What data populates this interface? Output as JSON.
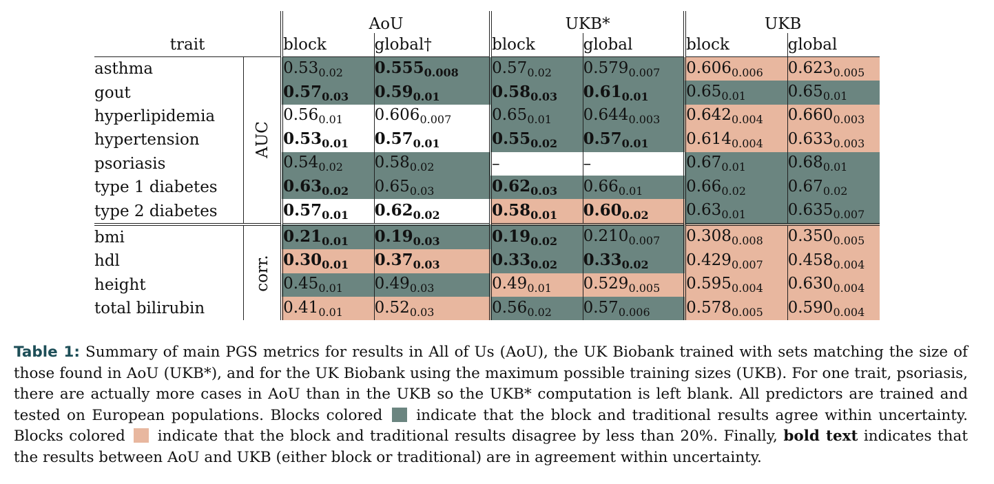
{
  "table": {
    "groups": [
      "AoU",
      "UKB*",
      "UKB"
    ],
    "trait_header": "trait",
    "subheaders": [
      "block",
      "global†",
      "block",
      "global",
      "block",
      "global"
    ],
    "sections": [
      {
        "metric": "AUC",
        "rows": [
          {
            "trait": "asthma",
            "cells": [
              {
                "main": "0.53",
                "sub": "0.02",
                "color": "green",
                "bold": false
              },
              {
                "main": "0.555",
                "sub": "0.008",
                "color": "green",
                "bold": true
              },
              {
                "main": "0.57",
                "sub": "0.02",
                "color": "green",
                "bold": false
              },
              {
                "main": "0.579",
                "sub": "0.007",
                "color": "green",
                "bold": false
              },
              {
                "main": "0.606",
                "sub": "0.006",
                "color": "salmon",
                "bold": false
              },
              {
                "main": "0.623",
                "sub": "0.005",
                "color": "salmon",
                "bold": false
              }
            ]
          },
          {
            "trait": "gout",
            "cells": [
              {
                "main": "0.57",
                "sub": "0.03",
                "color": "green",
                "bold": true
              },
              {
                "main": "0.59",
                "sub": "0.01",
                "color": "green",
                "bold": true
              },
              {
                "main": "0.58",
                "sub": "0.03",
                "color": "green",
                "bold": true
              },
              {
                "main": "0.61",
                "sub": "0.01",
                "color": "green",
                "bold": true
              },
              {
                "main": "0.65",
                "sub": "0.01",
                "color": "green",
                "bold": false
              },
              {
                "main": "0.65",
                "sub": "0.01",
                "color": "green",
                "bold": false
              }
            ]
          },
          {
            "trait": "hyperlipidemia",
            "cells": [
              {
                "main": "0.56",
                "sub": "0.01",
                "color": "white",
                "bold": false
              },
              {
                "main": "0.606",
                "sub": "0.007",
                "color": "white",
                "bold": false
              },
              {
                "main": "0.65",
                "sub": "0.01",
                "color": "green",
                "bold": false
              },
              {
                "main": "0.644",
                "sub": "0.003",
                "color": "green",
                "bold": false
              },
              {
                "main": "0.642",
                "sub": "0.004",
                "color": "salmon",
                "bold": false
              },
              {
                "main": "0.660",
                "sub": "0.003",
                "color": "salmon",
                "bold": false
              }
            ]
          },
          {
            "trait": "hypertension",
            "cells": [
              {
                "main": "0.53",
                "sub": "0.01",
                "color": "white",
                "bold": true
              },
              {
                "main": "0.57",
                "sub": "0.01",
                "color": "white",
                "bold": true
              },
              {
                "main": "0.55",
                "sub": "0.02",
                "color": "green",
                "bold": true
              },
              {
                "main": "0.57",
                "sub": "0.01",
                "color": "green",
                "bold": true
              },
              {
                "main": "0.614",
                "sub": "0.004",
                "color": "salmon",
                "bold": false
              },
              {
                "main": "0.633",
                "sub": "0.003",
                "color": "salmon",
                "bold": false
              }
            ]
          },
          {
            "trait": "psoriasis",
            "cells": [
              {
                "main": "0.54",
                "sub": "0.02",
                "color": "green",
                "bold": false
              },
              {
                "main": "0.58",
                "sub": "0.02",
                "color": "green",
                "bold": false
              },
              {
                "main": "–",
                "sub": "",
                "color": "white",
                "bold": false
              },
              {
                "main": "–",
                "sub": "",
                "color": "white",
                "bold": false
              },
              {
                "main": "0.67",
                "sub": "0.01",
                "color": "green",
                "bold": false
              },
              {
                "main": "0.68",
                "sub": "0.01",
                "color": "green",
                "bold": false
              }
            ]
          },
          {
            "trait": "type 1 diabetes",
            "cells": [
              {
                "main": "0.63",
                "sub": "0.02",
                "color": "green",
                "bold": true
              },
              {
                "main": "0.65",
                "sub": "0.03",
                "color": "green",
                "bold": false
              },
              {
                "main": "0.62",
                "sub": "0.03",
                "color": "green",
                "bold": true
              },
              {
                "main": "0.66",
                "sub": "0.01",
                "color": "green",
                "bold": false
              },
              {
                "main": "0.66",
                "sub": "0.02",
                "color": "green",
                "bold": false
              },
              {
                "main": "0.67",
                "sub": "0.02",
                "color": "green",
                "bold": false
              }
            ]
          },
          {
            "trait": "type 2 diabetes",
            "cells": [
              {
                "main": "0.57",
                "sub": "0.01",
                "color": "white",
                "bold": true
              },
              {
                "main": "0.62",
                "sub": "0.02",
                "color": "white",
                "bold": true
              },
              {
                "main": "0.58",
                "sub": "0.01",
                "color": "salmon",
                "bold": true
              },
              {
                "main": "0.60",
                "sub": "0.02",
                "color": "salmon",
                "bold": true
              },
              {
                "main": "0.63",
                "sub": "0.01",
                "color": "green",
                "bold": false
              },
              {
                "main": "0.635",
                "sub": "0.007",
                "color": "green",
                "bold": false
              }
            ]
          }
        ]
      },
      {
        "metric": "corr.",
        "rows": [
          {
            "trait": "bmi",
            "cells": [
              {
                "main": "0.21",
                "sub": "0.01",
                "color": "green",
                "bold": true
              },
              {
                "main": "0.19",
                "sub": "0.03",
                "color": "green",
                "bold": true
              },
              {
                "main": "0.19",
                "sub": "0.02",
                "color": "green",
                "bold": true
              },
              {
                "main": "0.210",
                "sub": "0.007",
                "color": "green",
                "bold": false
              },
              {
                "main": "0.308",
                "sub": "0.008",
                "color": "salmon",
                "bold": false
              },
              {
                "main": "0.350",
                "sub": "0.005",
                "color": "salmon",
                "bold": false
              }
            ]
          },
          {
            "trait": "hdl",
            "cells": [
              {
                "main": "0.30",
                "sub": "0.01",
                "color": "salmon",
                "bold": true
              },
              {
                "main": "0.37",
                "sub": "0.03",
                "color": "salmon",
                "bold": true
              },
              {
                "main": "0.33",
                "sub": "0.02",
                "color": "green",
                "bold": true
              },
              {
                "main": "0.33",
                "sub": "0.02",
                "color": "green",
                "bold": true
              },
              {
                "main": "0.429",
                "sub": "0.007",
                "color": "salmon",
                "bold": false
              },
              {
                "main": "0.458",
                "sub": "0.004",
                "color": "salmon",
                "bold": false
              }
            ]
          },
          {
            "trait": "height",
            "cells": [
              {
                "main": "0.45",
                "sub": "0.01",
                "color": "green",
                "bold": false
              },
              {
                "main": "0.49",
                "sub": "0.03",
                "color": "green",
                "bold": false
              },
              {
                "main": "0.49",
                "sub": "0.01",
                "color": "salmon",
                "bold": false
              },
              {
                "main": "0.529",
                "sub": "0.005",
                "color": "salmon",
                "bold": false
              },
              {
                "main": "0.595",
                "sub": "0.004",
                "color": "salmon",
                "bold": false
              },
              {
                "main": "0.630",
                "sub": "0.004",
                "color": "salmon",
                "bold": false
              }
            ]
          },
          {
            "trait": "total bilirubin",
            "cells": [
              {
                "main": "0.41",
                "sub": "0.01",
                "color": "salmon",
                "bold": false
              },
              {
                "main": "0.52",
                "sub": "0.03",
                "color": "salmon",
                "bold": false
              },
              {
                "main": "0.56",
                "sub": "0.02",
                "color": "green",
                "bold": false
              },
              {
                "main": "0.57",
                "sub": "0.006",
                "color": "green",
                "bold": false
              },
              {
                "main": "0.578",
                "sub": "0.005",
                "color": "salmon",
                "bold": false
              },
              {
                "main": "0.590",
                "sub": "0.004",
                "color": "salmon",
                "bold": false
              }
            ]
          }
        ]
      }
    ]
  },
  "caption": {
    "label": "Table 1:",
    "text_1": "Summary of main PGS metrics for results in All of Us (AoU), the UK Biobank trained with sets matching the size of those found in AoU (UKB*), and for the UK Biobank using the maximum possible training sizes (UKB). For one trait, psoriasis, there are actually more cases in AoU than in the UKB so the UKB* computation is left blank. All predictors are trained and tested on European populations. Blocks colored",
    "text_2": "indicate that the block and traditional results agree within uncertainty. Blocks colored",
    "text_3": "indicate that the block and traditional results disagree by less than 20%. Finally,",
    "bold_text": "bold text",
    "text_4": "indicates that the results between AoU and UKB (either block or traditional) are in agreement within uncertainty."
  },
  "colors": {
    "agree": "#6b8580",
    "disagree": "#e8b79f",
    "caption_label": "#1d4e57"
  }
}
